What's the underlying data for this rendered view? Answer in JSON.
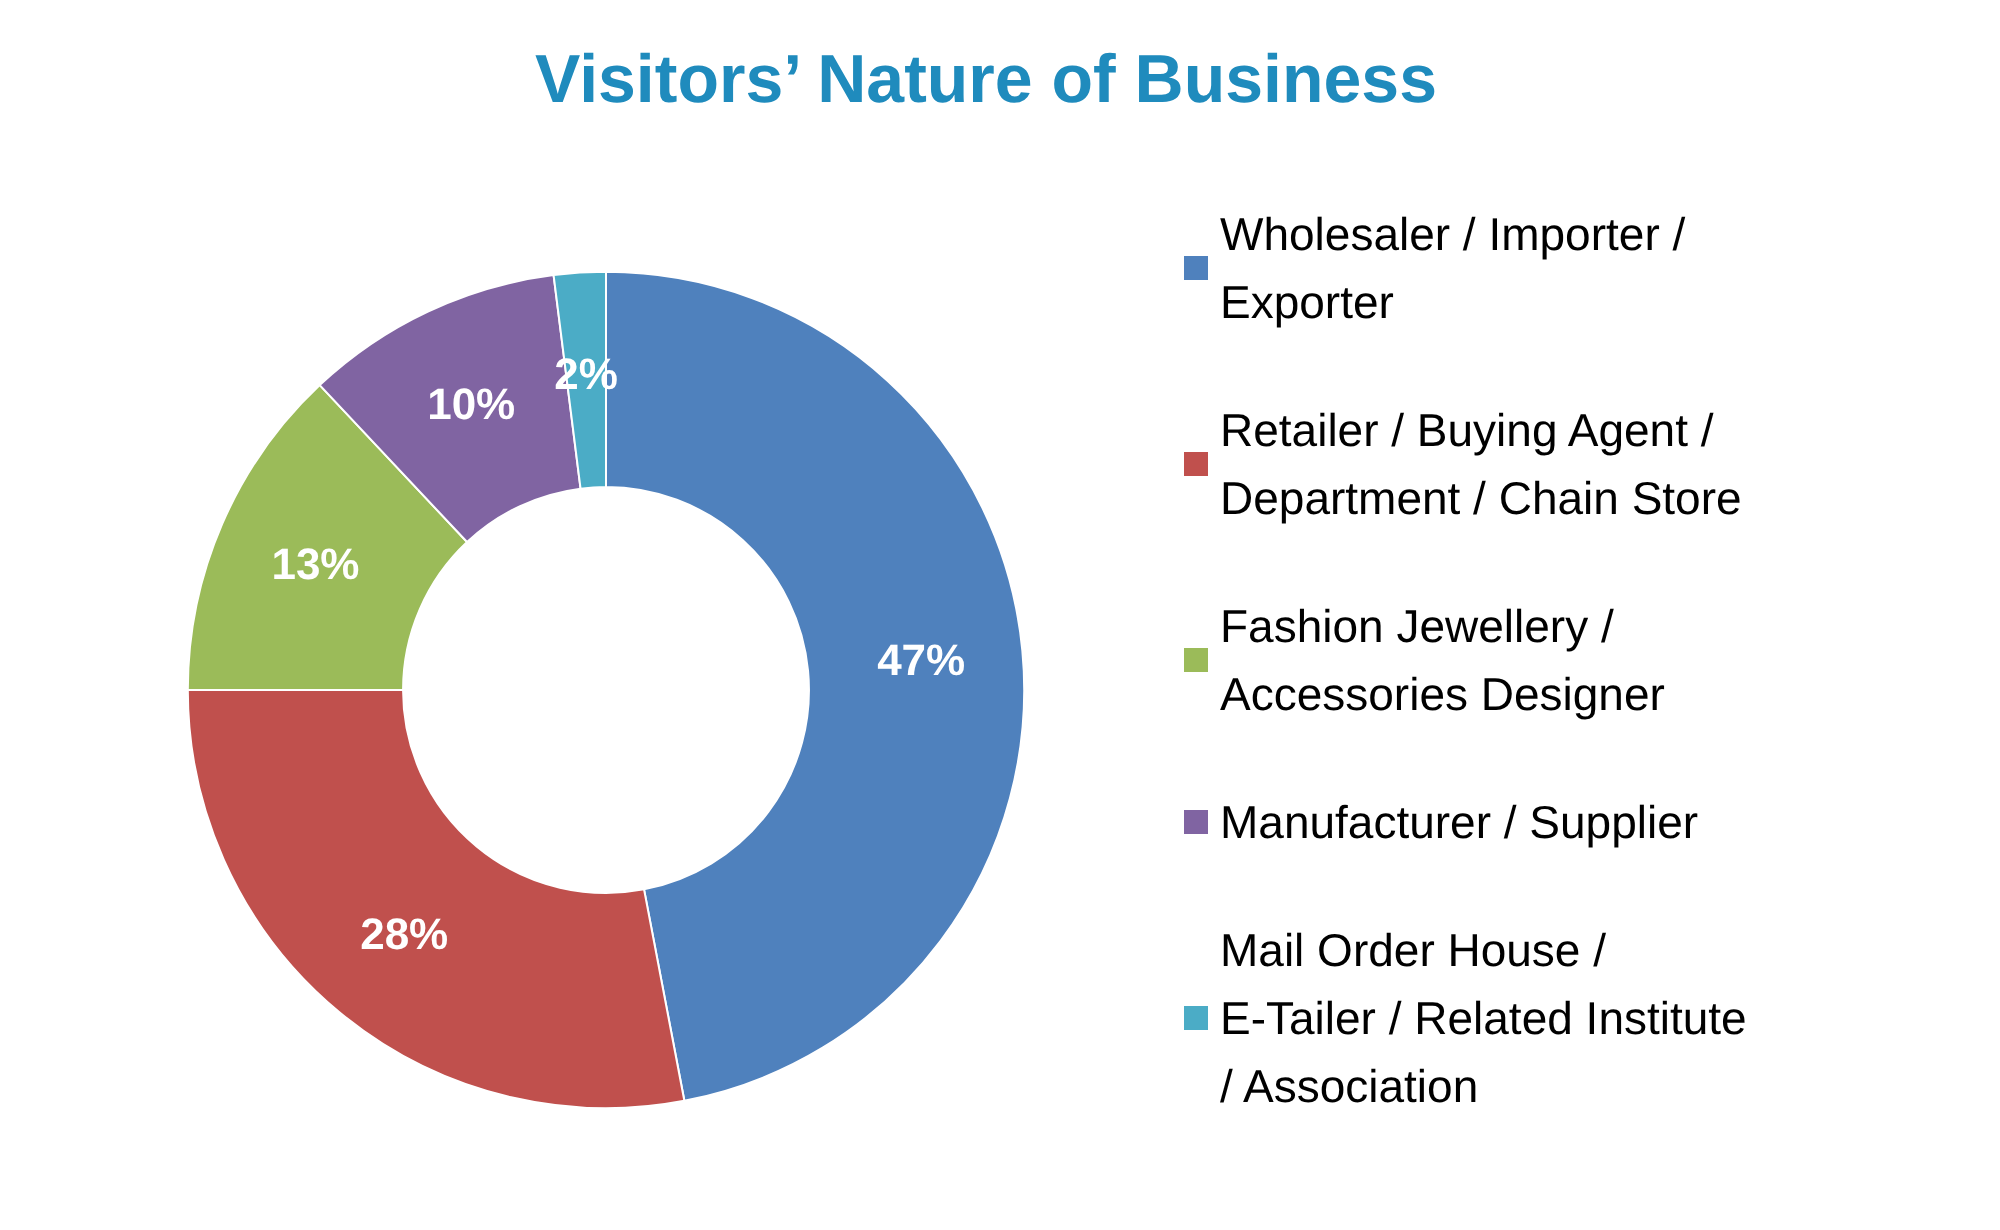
{
  "chart_data": {
    "type": "donut",
    "title": "Visitors’ Nature of Business",
    "categories": [
      "Wholesaler / Importer / Exporter",
      "Retailer / Buying Agent / Department / Chain Store",
      "Fashion Jewellery / Accessories Designer",
      "Manufacturer / Supplier",
      "Mail Order House / E-Tailer / Related Institute / Association"
    ],
    "values": [
      47,
      28,
      13,
      10,
      2
    ],
    "colors": [
      "#4f81bd",
      "#c0504d",
      "#9bbb59",
      "#8064a2",
      "#4bacc6"
    ],
    "value_labels": [
      "47%",
      "28%",
      "13%",
      "10%",
      "2%"
    ],
    "legend": "right"
  }
}
